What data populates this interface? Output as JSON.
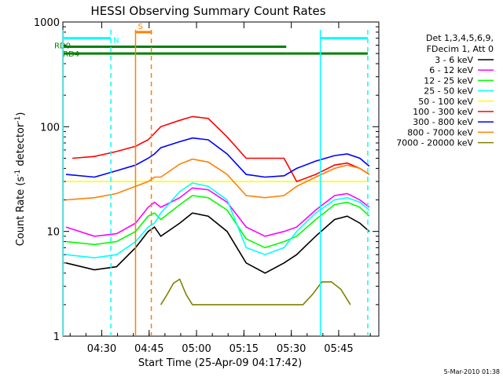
{
  "chart_data": {
    "type": "line",
    "title": "HESSI Observing Summary Count Rates",
    "xlabel": "Start Time (25-Apr-09 04:17:42)",
    "ylabel_main": "Count Rate (s",
    "ylabel_sup1": "-1",
    "ylabel_mid": " detector",
    "ylabel_sup2": "-1",
    "ylabel_end": ")",
    "xlim_min": [
      0,
      100
    ],
    "ylim": [
      1,
      1000
    ],
    "y_scale": "log",
    "x_ticks": [
      {
        "label": "04:30",
        "min": 12.3
      },
      {
        "label": "04:45",
        "min": 27.3
      },
      {
        "label": "05:00",
        "min": 42.3
      },
      {
        "label": "05:15",
        "min": 57.3
      },
      {
        "label": "05:30",
        "min": 72.3
      },
      {
        "label": "05:45",
        "min": 87.3
      }
    ],
    "y_ticks": [
      {
        "label": "1",
        "value": 1
      },
      {
        "label": "10",
        "value": 10
      },
      {
        "label": "100",
        "value": 100
      },
      {
        "label": "1000",
        "value": 1000
      }
    ],
    "legend_position": "right",
    "legend_header": [
      "Det 1,3,4,5,6,9,",
      "FDecim 1, Att 0"
    ],
    "series": [
      {
        "name": "3 - 6 keV",
        "color": "#000000",
        "points": [
          [
            1,
            5
          ],
          [
            10,
            4.3
          ],
          [
            17,
            4.6
          ],
          [
            23,
            7
          ],
          [
            27,
            10
          ],
          [
            29,
            11
          ],
          [
            31,
            9
          ],
          [
            37,
            12
          ],
          [
            41,
            15
          ],
          [
            46,
            14
          ],
          [
            52,
            10
          ],
          [
            58,
            5
          ],
          [
            64,
            4
          ],
          [
            70,
            5
          ],
          [
            74,
            6
          ],
          [
            80,
            9
          ],
          [
            86,
            13
          ],
          [
            90,
            14
          ],
          [
            94,
            12
          ],
          [
            97,
            10
          ]
        ]
      },
      {
        "name": "6 - 12 keV",
        "color": "#ff00ff",
        "points": [
          [
            1,
            11
          ],
          [
            10,
            9
          ],
          [
            17,
            9.5
          ],
          [
            23,
            12
          ],
          [
            27,
            17
          ],
          [
            29,
            19
          ],
          [
            31,
            17
          ],
          [
            37,
            21
          ],
          [
            41,
            26
          ],
          [
            46,
            25
          ],
          [
            52,
            19
          ],
          [
            58,
            11
          ],
          [
            64,
            9
          ],
          [
            70,
            10
          ],
          [
            74,
            11
          ],
          [
            80,
            16
          ],
          [
            86,
            22
          ],
          [
            90,
            23
          ],
          [
            94,
            20
          ],
          [
            97,
            17
          ]
        ]
      },
      {
        "name": "12 - 25 keV",
        "color": "#00ff00",
        "points": [
          [
            1,
            8
          ],
          [
            10,
            7.5
          ],
          [
            17,
            8
          ],
          [
            23,
            10
          ],
          [
            27,
            14
          ],
          [
            29,
            15
          ],
          [
            31,
            13
          ],
          [
            37,
            18
          ],
          [
            41,
            22
          ],
          [
            46,
            21
          ],
          [
            52,
            16
          ],
          [
            58,
            8.5
          ],
          [
            64,
            7
          ],
          [
            70,
            8
          ],
          [
            74,
            9
          ],
          [
            80,
            13
          ],
          [
            86,
            18
          ],
          [
            90,
            19
          ],
          [
            94,
            17
          ],
          [
            97,
            14
          ]
        ]
      },
      {
        "name": "25 - 50 keV",
        "color": "#00ffff",
        "points": [
          [
            1,
            6
          ],
          [
            10,
            5.6
          ],
          [
            17,
            6
          ],
          [
            23,
            8
          ],
          [
            27,
            11
          ],
          [
            29,
            12
          ],
          [
            31,
            15
          ],
          [
            37,
            24
          ],
          [
            41,
            29
          ],
          [
            46,
            27
          ],
          [
            52,
            20
          ],
          [
            58,
            7
          ],
          [
            64,
            6
          ],
          [
            70,
            7
          ],
          [
            74,
            10
          ],
          [
            80,
            15
          ],
          [
            86,
            20
          ],
          [
            90,
            21
          ],
          [
            94,
            19
          ],
          [
            97,
            16
          ]
        ]
      },
      {
        "name": "50 - 100 keV",
        "color": "#ffff00",
        "points": [
          [
            1,
            30
          ],
          [
            10,
            30
          ],
          [
            17,
            30
          ],
          [
            23,
            30
          ],
          [
            27,
            30
          ],
          [
            29,
            30
          ],
          [
            31,
            30
          ],
          [
            37,
            30
          ],
          [
            41,
            30
          ],
          [
            46,
            30
          ],
          [
            52,
            30
          ],
          [
            58,
            30
          ],
          [
            64,
            30
          ],
          [
            70,
            30
          ],
          [
            74,
            30
          ],
          [
            80,
            30
          ],
          [
            86,
            30
          ],
          [
            90,
            30
          ],
          [
            94,
            30
          ],
          [
            97,
            30
          ]
        ]
      },
      {
        "name": "100 - 300 keV",
        "color": "#ff0000",
        "points": [
          [
            3,
            50
          ],
          [
            10,
            52
          ],
          [
            17,
            58
          ],
          [
            23,
            65
          ],
          [
            25,
            70
          ],
          [
            27,
            75
          ],
          [
            31,
            100
          ],
          [
            37,
            115
          ],
          [
            41,
            125
          ],
          [
            46,
            120
          ],
          [
            52,
            80
          ],
          [
            58,
            50
          ],
          [
            64,
            50
          ],
          [
            70,
            50
          ],
          [
            74,
            30
          ],
          [
            80,
            35
          ],
          [
            86,
            43
          ],
          [
            90,
            45
          ],
          [
            94,
            40
          ],
          [
            97,
            35
          ]
        ]
      },
      {
        "name": "300 - 800 keV",
        "color": "#0000ff",
        "points": [
          [
            1,
            35
          ],
          [
            10,
            33
          ],
          [
            17,
            38
          ],
          [
            23,
            43
          ],
          [
            27,
            50
          ],
          [
            29,
            55
          ],
          [
            31,
            63
          ],
          [
            37,
            72
          ],
          [
            41,
            78
          ],
          [
            46,
            75
          ],
          [
            52,
            55
          ],
          [
            58,
            35
          ],
          [
            64,
            33
          ],
          [
            70,
            34
          ],
          [
            74,
            40
          ],
          [
            80,
            47
          ],
          [
            86,
            53
          ],
          [
            90,
            55
          ],
          [
            94,
            50
          ],
          [
            97,
            42
          ]
        ]
      },
      {
        "name": "800 - 7000 keV",
        "color": "#ff8000",
        "points": [
          [
            1,
            20
          ],
          [
            10,
            21
          ],
          [
            17,
            23
          ],
          [
            23,
            27
          ],
          [
            27,
            30
          ],
          [
            29,
            33
          ],
          [
            31,
            33
          ],
          [
            37,
            44
          ],
          [
            41,
            49
          ],
          [
            46,
            46
          ],
          [
            52,
            35
          ],
          [
            58,
            22
          ],
          [
            64,
            21
          ],
          [
            70,
            22
          ],
          [
            74,
            27
          ],
          [
            80,
            33
          ],
          [
            86,
            40
          ],
          [
            90,
            43
          ],
          [
            94,
            40
          ],
          [
            97,
            35
          ]
        ]
      },
      {
        "name": "7000 - 20000 keV",
        "color": "#808000",
        "points": [
          [
            31,
            2
          ],
          [
            33,
            2.5
          ],
          [
            35,
            3.2
          ],
          [
            37,
            3.5
          ],
          [
            39,
            2.5
          ],
          [
            41,
            2
          ],
          [
            76,
            2
          ],
          [
            79,
            2.5
          ],
          [
            82,
            3.3
          ],
          [
            85,
            3.3
          ],
          [
            88,
            2.8
          ],
          [
            91,
            2
          ]
        ]
      }
    ],
    "annotations": [
      {
        "label": "RD0",
        "color": "#008000",
        "y_value": 600
      },
      {
        "label": "RD4",
        "color": "#008000",
        "y_value": 500
      },
      {
        "label": "N",
        "color": "#00ffff"
      },
      {
        "label": "S",
        "color": "#ff8000"
      }
    ],
    "bars": [
      {
        "label": "N",
        "color": "#00ffff",
        "x1_min": 0,
        "x2_min": 15.2,
        "y_value": 700
      },
      {
        "label": "N",
        "color": "#00ffff",
        "x1_min": 81.5,
        "x2_min": 96.5,
        "y_value": 700
      },
      {
        "label": "S",
        "color": "#ff8000",
        "x1_min": 23,
        "x2_min": 28,
        "y_value": 800
      },
      {
        "label": "RD0",
        "color": "#008000",
        "x1_min": 0,
        "x2_min": 70.7,
        "y_value": 580
      },
      {
        "label": "RD4",
        "color": "#008000",
        "x1_min": 0,
        "x2_min": 70.7,
        "y_value": 500
      },
      {
        "label": "RD4",
        "color": "#008000",
        "x1_min": 70.7,
        "x2_min": 96.5,
        "y_value": 500
      }
    ],
    "vlines": [
      {
        "color": "#00ffff",
        "style": "solid",
        "min": 0.1
      },
      {
        "color": "#00ffff",
        "style": "dashed",
        "min": 15.2
      },
      {
        "color": "#ff8000",
        "style": "solid",
        "min": 23
      },
      {
        "color": "#ff8000",
        "style": "dashed",
        "min": 28
      },
      {
        "color": "#00ffff",
        "style": "solid",
        "min": 81.5
      },
      {
        "color": "#00ffff",
        "style": "dashed",
        "min": 96.5
      }
    ]
  },
  "footer": {
    "timestamp": "5-Mar-2010 01:38"
  }
}
